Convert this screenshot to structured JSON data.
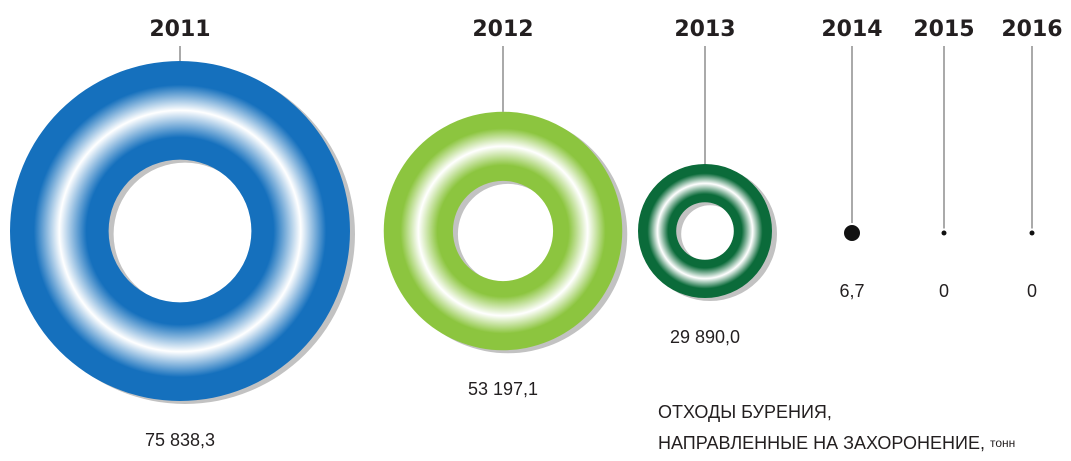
{
  "chart_data": {
    "type": "bubble",
    "title": [
      "ОТХОДЫ БУРЕНИЯ,",
      "НАПРАВЛЕННЫЕ НА ЗАХОРОНЕНИЕ,"
    ],
    "unit": "тонн",
    "categories": [
      "2011",
      "2012",
      "2013",
      "2014",
      "2015",
      "2016"
    ],
    "values": [
      75838.3,
      53197.1,
      29890.0,
      6.7,
      0,
      0
    ],
    "value_labels": [
      "75 838,3",
      "53 197,1",
      "29 890,0",
      "6,7",
      "0",
      "0"
    ],
    "colors": [
      "#1570bd",
      "#8cc53f",
      "#0b6b3a",
      "#111111",
      "#111111",
      "#111111"
    ]
  }
}
